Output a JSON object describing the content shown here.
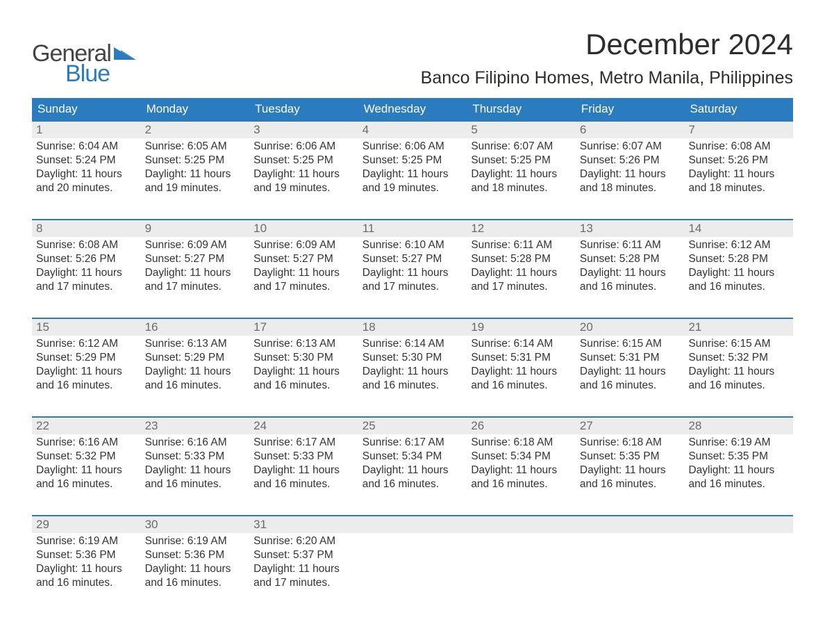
{
  "logo": {
    "text1": "General",
    "text2": "Blue",
    "tri_color": "#2b7bbf"
  },
  "title": "December 2024",
  "location": "Banco Filipino Homes, Metro Manila, Philippines",
  "colors": {
    "header_bg": "#2b7bbf",
    "header_text": "#ffffff",
    "week_top_border": "#2b7bbf",
    "daynum_bg": "#ececec",
    "daynum_text": "#6a6a6a",
    "body_text": "#333333",
    "background": "#ffffff"
  },
  "fonts": {
    "title_size_pt": 32,
    "location_size_pt": 19,
    "weekday_size_pt": 13,
    "daynum_size_pt": 13,
    "body_size_pt": 12
  },
  "weekdays": [
    "Sunday",
    "Monday",
    "Tuesday",
    "Wednesday",
    "Thursday",
    "Friday",
    "Saturday"
  ],
  "weeks": [
    [
      {
        "n": "1",
        "sunrise": "6:04 AM",
        "sunset": "5:24 PM",
        "daylight": "11 hours and 20 minutes."
      },
      {
        "n": "2",
        "sunrise": "6:05 AM",
        "sunset": "5:25 PM",
        "daylight": "11 hours and 19 minutes."
      },
      {
        "n": "3",
        "sunrise": "6:06 AM",
        "sunset": "5:25 PM",
        "daylight": "11 hours and 19 minutes."
      },
      {
        "n": "4",
        "sunrise": "6:06 AM",
        "sunset": "5:25 PM",
        "daylight": "11 hours and 19 minutes."
      },
      {
        "n": "5",
        "sunrise": "6:07 AM",
        "sunset": "5:25 PM",
        "daylight": "11 hours and 18 minutes."
      },
      {
        "n": "6",
        "sunrise": "6:07 AM",
        "sunset": "5:26 PM",
        "daylight": "11 hours and 18 minutes."
      },
      {
        "n": "7",
        "sunrise": "6:08 AM",
        "sunset": "5:26 PM",
        "daylight": "11 hours and 18 minutes."
      }
    ],
    [
      {
        "n": "8",
        "sunrise": "6:08 AM",
        "sunset": "5:26 PM",
        "daylight": "11 hours and 17 minutes."
      },
      {
        "n": "9",
        "sunrise": "6:09 AM",
        "sunset": "5:27 PM",
        "daylight": "11 hours and 17 minutes."
      },
      {
        "n": "10",
        "sunrise": "6:09 AM",
        "sunset": "5:27 PM",
        "daylight": "11 hours and 17 minutes."
      },
      {
        "n": "11",
        "sunrise": "6:10 AM",
        "sunset": "5:27 PM",
        "daylight": "11 hours and 17 minutes."
      },
      {
        "n": "12",
        "sunrise": "6:11 AM",
        "sunset": "5:28 PM",
        "daylight": "11 hours and 17 minutes."
      },
      {
        "n": "13",
        "sunrise": "6:11 AM",
        "sunset": "5:28 PM",
        "daylight": "11 hours and 16 minutes."
      },
      {
        "n": "14",
        "sunrise": "6:12 AM",
        "sunset": "5:28 PM",
        "daylight": "11 hours and 16 minutes."
      }
    ],
    [
      {
        "n": "15",
        "sunrise": "6:12 AM",
        "sunset": "5:29 PM",
        "daylight": "11 hours and 16 minutes."
      },
      {
        "n": "16",
        "sunrise": "6:13 AM",
        "sunset": "5:29 PM",
        "daylight": "11 hours and 16 minutes."
      },
      {
        "n": "17",
        "sunrise": "6:13 AM",
        "sunset": "5:30 PM",
        "daylight": "11 hours and 16 minutes."
      },
      {
        "n": "18",
        "sunrise": "6:14 AM",
        "sunset": "5:30 PM",
        "daylight": "11 hours and 16 minutes."
      },
      {
        "n": "19",
        "sunrise": "6:14 AM",
        "sunset": "5:31 PM",
        "daylight": "11 hours and 16 minutes."
      },
      {
        "n": "20",
        "sunrise": "6:15 AM",
        "sunset": "5:31 PM",
        "daylight": "11 hours and 16 minutes."
      },
      {
        "n": "21",
        "sunrise": "6:15 AM",
        "sunset": "5:32 PM",
        "daylight": "11 hours and 16 minutes."
      }
    ],
    [
      {
        "n": "22",
        "sunrise": "6:16 AM",
        "sunset": "5:32 PM",
        "daylight": "11 hours and 16 minutes."
      },
      {
        "n": "23",
        "sunrise": "6:16 AM",
        "sunset": "5:33 PM",
        "daylight": "11 hours and 16 minutes."
      },
      {
        "n": "24",
        "sunrise": "6:17 AM",
        "sunset": "5:33 PM",
        "daylight": "11 hours and 16 minutes."
      },
      {
        "n": "25",
        "sunrise": "6:17 AM",
        "sunset": "5:34 PM",
        "daylight": "11 hours and 16 minutes."
      },
      {
        "n": "26",
        "sunrise": "6:18 AM",
        "sunset": "5:34 PM",
        "daylight": "11 hours and 16 minutes."
      },
      {
        "n": "27",
        "sunrise": "6:18 AM",
        "sunset": "5:35 PM",
        "daylight": "11 hours and 16 minutes."
      },
      {
        "n": "28",
        "sunrise": "6:19 AM",
        "sunset": "5:35 PM",
        "daylight": "11 hours and 16 minutes."
      }
    ],
    [
      {
        "n": "29",
        "sunrise": "6:19 AM",
        "sunset": "5:36 PM",
        "daylight": "11 hours and 16 minutes."
      },
      {
        "n": "30",
        "sunrise": "6:19 AM",
        "sunset": "5:36 PM",
        "daylight": "11 hours and 16 minutes."
      },
      {
        "n": "31",
        "sunrise": "6:20 AM",
        "sunset": "5:37 PM",
        "daylight": "11 hours and 17 minutes."
      },
      null,
      null,
      null,
      null
    ]
  ],
  "labels": {
    "sunrise": "Sunrise:",
    "sunset": "Sunset:",
    "daylight": "Daylight:"
  }
}
